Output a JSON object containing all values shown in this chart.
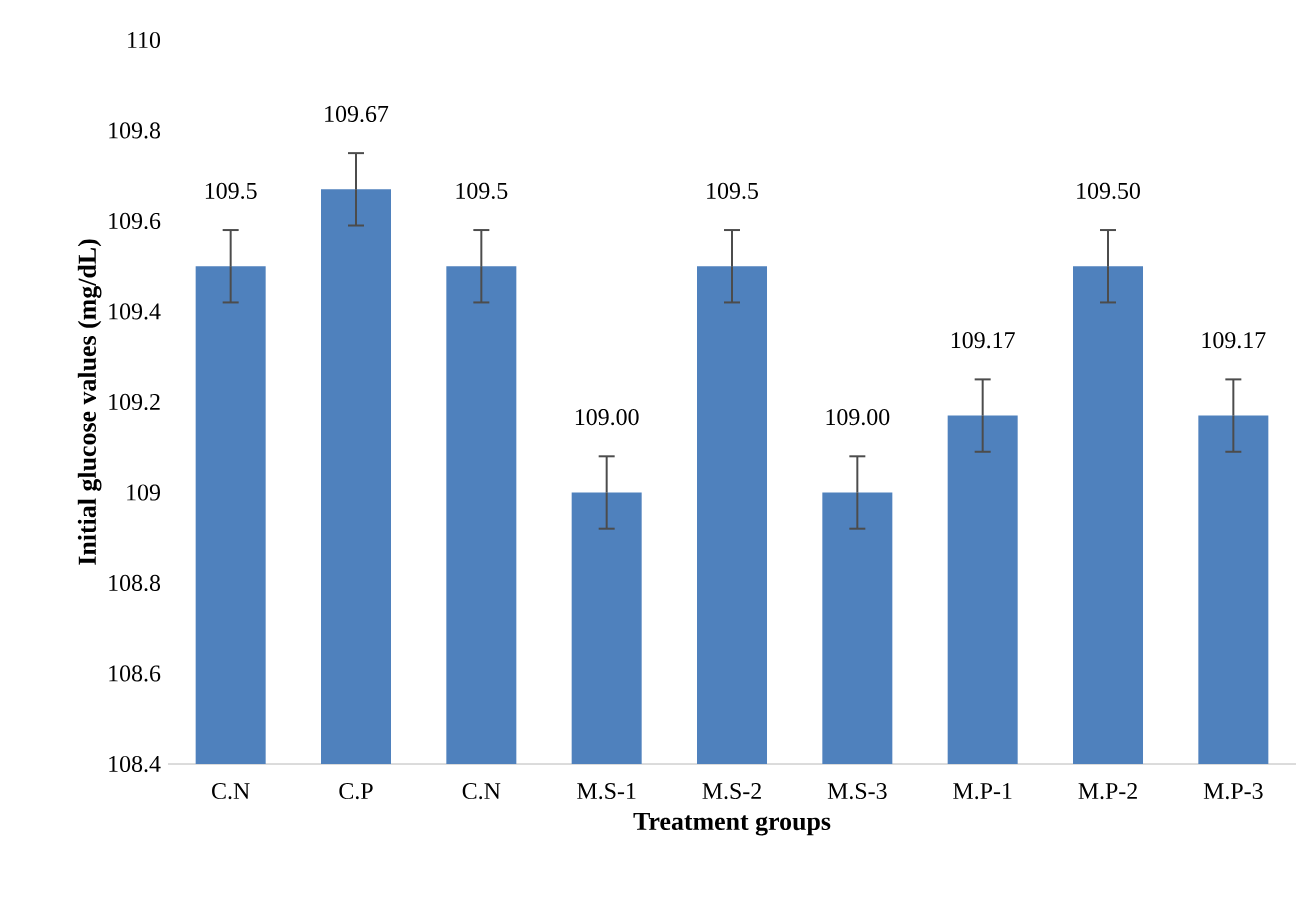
{
  "chart_data": {
    "type": "bar",
    "xlabel": "Treatment groups",
    "ylabel": "Initial glucose values (mg/dL)",
    "categories": [
      "C.N",
      "C.P",
      "C.N",
      "M.S-1",
      "M.S-2",
      "M.S-3",
      "M.P-1",
      "M.P-2",
      "M.P-3"
    ],
    "values": [
      109.5,
      109.67,
      109.5,
      109.0,
      109.5,
      109.0,
      109.17,
      109.5,
      109.17
    ],
    "errors": [
      0.08,
      0.08,
      0.08,
      0.08,
      0.08,
      0.08,
      0.08,
      0.08,
      0.08
    ],
    "value_labels": [
      "109.5",
      "109.67",
      "109.5",
      "109.00",
      "109.5",
      "109.00",
      "109.17",
      "109.50",
      "109.17"
    ],
    "color": "#4f81bd",
    "ylim": [
      108.4,
      110
    ],
    "yticks": [
      108.4,
      108.6,
      108.8,
      109,
      109.2,
      109.4,
      109.6,
      109.8,
      110
    ]
  }
}
